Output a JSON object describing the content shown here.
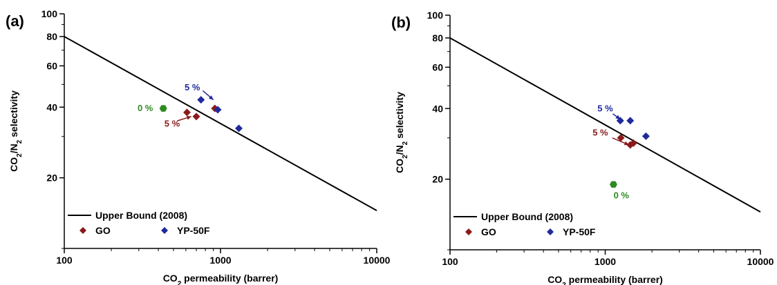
{
  "colors": {
    "GO": "#8b1a1a",
    "YP-50F": "#1f2a9c",
    "zero": "#2e8b22",
    "bound": "#000000"
  },
  "chart_data": [
    {
      "type": "scatter",
      "panel_label": "(a)",
      "x_scale": "log",
      "y_scale": "log",
      "xlim": [
        100,
        10000
      ],
      "ylim": [
        10,
        100
      ],
      "x_ticks": [
        "100",
        "1000",
        "10000"
      ],
      "y_ticks": [
        "20",
        "40",
        "60",
        "80",
        "100"
      ],
      "xlabel_main": "CO",
      "xlabel_sub": "2",
      "xlabel_rest": " permeability (barrer)",
      "ylabel_parts": [
        "CO",
        "2",
        "/N",
        "2",
        " selectivity"
      ],
      "legend": [
        "Upper Bound (2008)",
        "GO",
        "YP-50F"
      ],
      "upper_bound": [
        [
          100,
          80
        ],
        [
          10000,
          14.5
        ]
      ],
      "series": [
        {
          "name": "GO",
          "color": "GO",
          "marker": "diamond",
          "points": [
            [
              610,
              38
            ],
            [
              700,
              36.5
            ],
            [
              920,
              39.5
            ]
          ]
        },
        {
          "name": "YP-50F",
          "color": "YP-50F",
          "marker": "diamond",
          "points": [
            [
              750,
              43
            ],
            [
              960,
              39
            ],
            [
              1310,
              32.5
            ]
          ]
        },
        {
          "color": "zero",
          "marker": "hexagon",
          "points": [
            [
              430,
              39.5
            ]
          ]
        }
      ],
      "annotations": [
        {
          "text": "0 %",
          "color": "zero",
          "x": 330,
          "y": 39.5
        },
        {
          "text": "5 %",
          "color": "GO",
          "x": 490,
          "y": 34
        },
        {
          "text": "5 %",
          "color": "YP-50F",
          "x": 660,
          "y": 48.5
        }
      ],
      "arrows": [
        {
          "color": "GO",
          "from": [
            530,
            35
          ],
          "to": [
            650,
            36.5
          ]
        },
        {
          "color": "YP-50F",
          "from": [
            770,
            47
          ],
          "to": [
            900,
            43
          ]
        }
      ]
    },
    {
      "type": "scatter",
      "panel_label": "(b)",
      "x_scale": "log",
      "y_scale": "log",
      "xlim": [
        100,
        10000
      ],
      "ylim": [
        10,
        100
      ],
      "x_ticks": [
        "100",
        "1000",
        "10000"
      ],
      "y_ticks": [
        "20",
        "40",
        "60",
        "80",
        "100"
      ],
      "xlabel_main": "CO",
      "xlabel_sub": "2",
      "xlabel_rest": " permeability (barrer)",
      "ylabel_parts": [
        "CO",
        "2",
        "/N",
        "2",
        " selectivity"
      ],
      "legend": [
        "Upper Bound (2008)",
        "GO",
        "YP-50F"
      ],
      "upper_bound": [
        [
          100,
          80
        ],
        [
          10000,
          14.5
        ]
      ],
      "series": [
        {
          "name": "GO",
          "color": "GO",
          "marker": "diamond",
          "points": [
            [
              1260,
              30
            ],
            [
              1450,
              28
            ],
            [
              1520,
              28.5
            ]
          ]
        },
        {
          "name": "YP-50F",
          "color": "YP-50F",
          "marker": "diamond",
          "points": [
            [
              1250,
              35.5
            ],
            [
              1450,
              35.5
            ],
            [
              1830,
              30.5
            ]
          ]
        },
        {
          "color": "zero",
          "marker": "hexagon",
          "points": [
            [
              1130,
              19
            ]
          ]
        }
      ],
      "annotations": [
        {
          "text": "5 %",
          "color": "YP-50F",
          "x": 1000,
          "y": 40
        },
        {
          "text": "5 %",
          "color": "GO",
          "x": 930,
          "y": 31.5
        },
        {
          "text": "0 %",
          "color": "zero",
          "x": 1270,
          "y": 17
        }
      ],
      "arrows": [
        {
          "color": "YP-50F",
          "from": [
            1120,
            38
          ],
          "to": [
            1250,
            36
          ]
        },
        {
          "color": "GO",
          "from": [
            1110,
            30
          ],
          "to": [
            1420,
            28
          ]
        }
      ]
    }
  ]
}
